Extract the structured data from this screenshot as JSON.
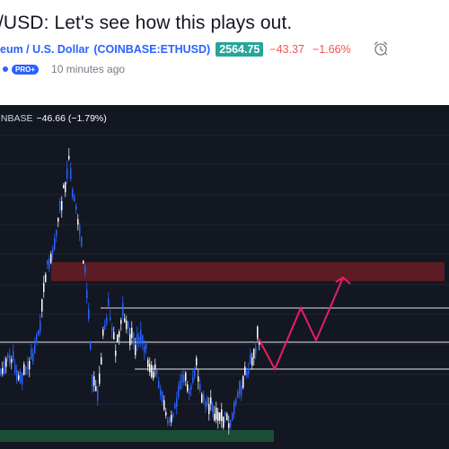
{
  "idea": {
    "title": "/USD: Let's see how this plays out.",
    "symbol_name": "eum / U.S. Dollar",
    "ticker": "(COINBASE:ETHUSD)",
    "price": "2564.75",
    "change": "−43.37",
    "change_pct": "−1.66%",
    "badge": "PRO+",
    "time_ago": "10 minutes ago"
  },
  "chart": {
    "legend_exchange": "INBASE",
    "legend_change": "−46.66 (−1.79%)"
  },
  "colors": {
    "background": "#131722",
    "candle_up": "#2962ff",
    "candle_down": "#ffffff",
    "resistance_zone": "#5c1c24",
    "support_zone": "#1b4d34",
    "projection": "#e91e63",
    "positive_badge": "#26a69a",
    "negative_text": "#ef5350"
  },
  "icons": {
    "alert": "alarm-clock-icon"
  }
}
